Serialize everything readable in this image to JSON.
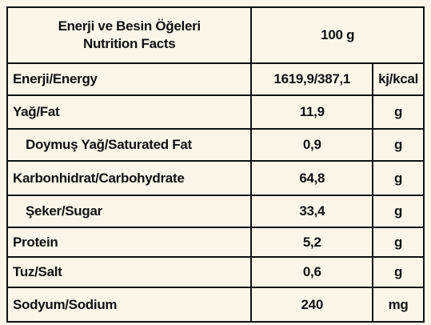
{
  "header": {
    "title": [
      "Enerji ve Besin Öğeleri",
      "Nutrition Facts"
    ],
    "amount": "100 g"
  },
  "table": {
    "rows": [
      [
        "Enerji/Energy",
        "1619,9/387,1",
        "kj/kcal"
      ],
      [
        "Yağ/Fat",
        "11,9",
        "g"
      ],
      [
        "Doymuş Yağ/Saturated Fat",
        "0,9",
        "g"
      ],
      [
        "Karbonhidrat/Carbohydrate",
        "64,8",
        "g"
      ],
      [
        "Şeker/Sugar",
        "33,4",
        "g"
      ],
      [
        "Protein",
        "5,2",
        "g"
      ],
      [
        "Tuz/Salt",
        "0,6",
        "g"
      ],
      [
        "Sodyum/Sodium",
        "240",
        "mg"
      ]
    ]
  }
}
